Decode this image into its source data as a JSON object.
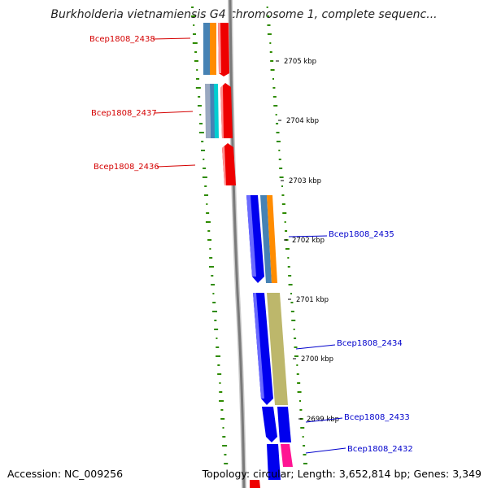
{
  "title": "Burkholderia vietnamiensis G4 chromosome 1, complete sequenc...",
  "footer": {
    "accession": "Accession: NC_009256",
    "summary": "Topology: circular; Length: 3,652,814 bp; Genes: 3,349"
  },
  "ticks": [
    {
      "label": "2705 kbp"
    },
    {
      "label": "2704 kbp"
    },
    {
      "label": "2703 kbp"
    },
    {
      "label": "2702 kbp"
    },
    {
      "label": "2701 kbp"
    },
    {
      "label": "2700 kbp"
    },
    {
      "label": "2699 kbp"
    }
  ],
  "genes_left": [
    {
      "label": "Bcep1808_2438"
    },
    {
      "label": "Bcep1808_2437"
    },
    {
      "label": "Bcep1808_2436"
    }
  ],
  "genes_right": [
    {
      "label": "Bcep1808_2435"
    },
    {
      "label": "Bcep1808_2434"
    },
    {
      "label": "Bcep1808_2433"
    },
    {
      "label": "Bcep1808_2432"
    }
  ],
  "colors": {
    "backbone": "#808080",
    "gc_skew": "#2e8b00",
    "reverse_cds": "#ee0000",
    "forward_cds": "#0000ee",
    "left_label": "#d40000",
    "right_label": "#0000cc",
    "cog_orange": "#ff8c00",
    "cog_steelblue": "#4682b4",
    "cog_khaki": "#bdb76b",
    "cog_pink": "#ff1493",
    "cog_cyan": "#00ced1"
  }
}
